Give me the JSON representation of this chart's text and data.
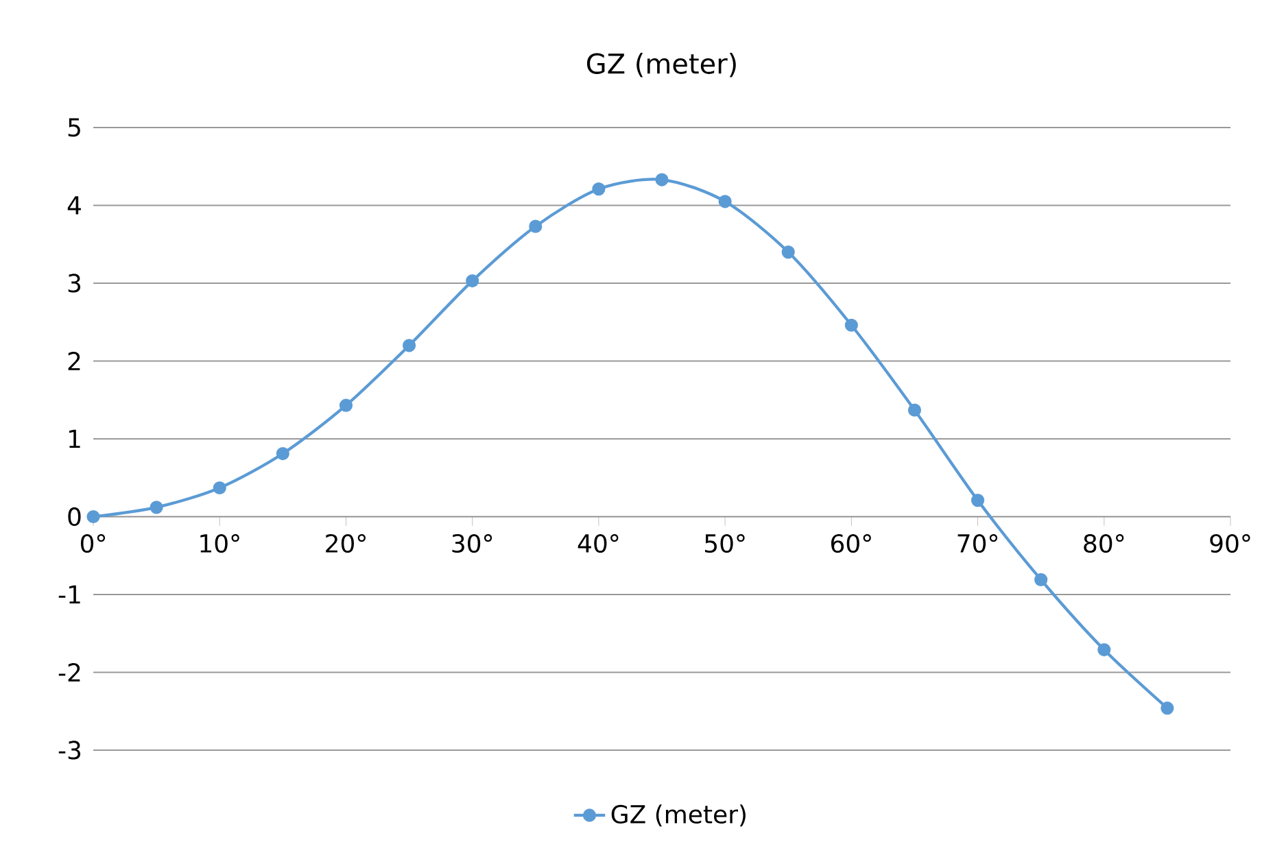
{
  "chart_data": {
    "type": "line",
    "title": "GZ (meter)",
    "x": [
      0,
      5,
      10,
      15,
      20,
      25,
      30,
      35,
      40,
      45,
      50,
      55,
      60,
      65,
      70,
      75,
      80,
      85
    ],
    "series": [
      {
        "name": "GZ (meter)",
        "color": "#5b9bd5",
        "values": [
          0,
          0.12,
          0.37,
          0.81,
          1.43,
          2.2,
          3.03,
          3.73,
          4.21,
          4.33,
          4.05,
          3.4,
          2.46,
          1.37,
          0.21,
          -0.81,
          -1.71,
          -2.46
        ]
      }
    ],
    "xlim": [
      0,
      90
    ],
    "xticks": [
      {
        "value": 0,
        "label": "0°"
      },
      {
        "value": 10,
        "label": "10°"
      },
      {
        "value": 20,
        "label": "20°"
      },
      {
        "value": 30,
        "label": "30°"
      },
      {
        "value": 40,
        "label": "40°"
      },
      {
        "value": 50,
        "label": "50°"
      },
      {
        "value": 60,
        "label": "60°"
      },
      {
        "value": 70,
        "label": "70°"
      },
      {
        "value": 80,
        "label": "80°"
      },
      {
        "value": 90,
        "label": "90°"
      }
    ],
    "ylim": [
      -3,
      5
    ],
    "yticks": [
      -3,
      -2,
      -1,
      0,
      1,
      2,
      3,
      4,
      5
    ],
    "grid": "y",
    "legend": "bottom",
    "marker": "circle",
    "line_style": "solid"
  }
}
